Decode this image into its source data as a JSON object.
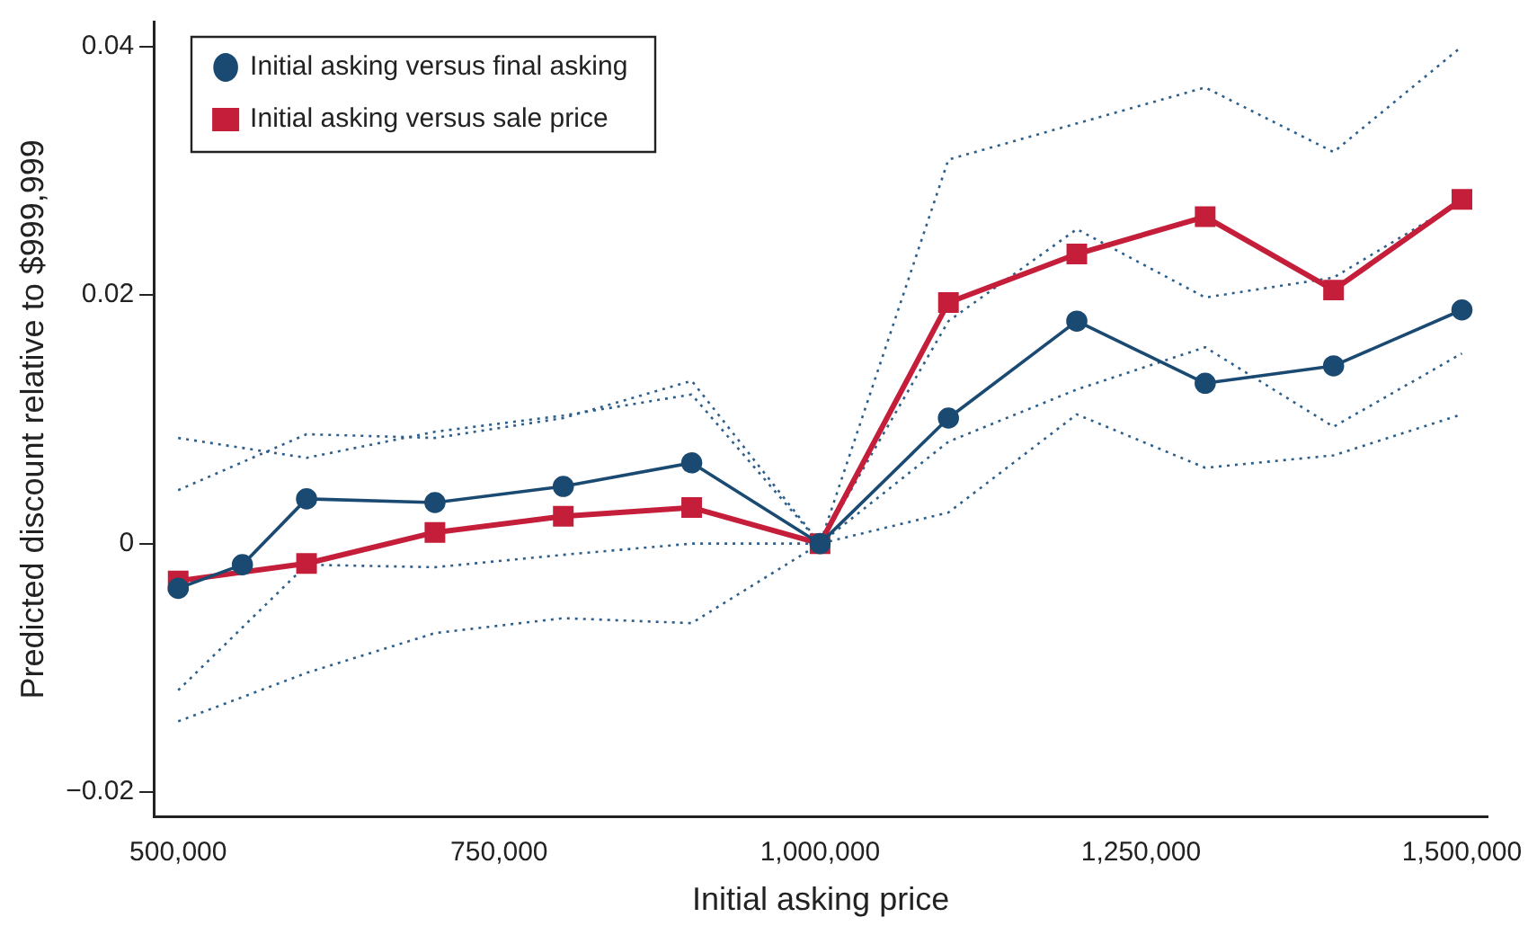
{
  "chart_data": {
    "type": "line",
    "xlabel": "Initial asking price",
    "ylabel": "Predicted discount relative to $999,999",
    "x": [
      500000,
      550000,
      600000,
      700000,
      800000,
      900000,
      1000000,
      1100000,
      1200000,
      1300000,
      1400000,
      1500000
    ],
    "series": [
      {
        "name": "Initial asking versus final asking",
        "color": "#1a4a72",
        "marker": "circle",
        "line_style": "solid",
        "values": [
          -0.0036,
          -0.0017,
          0.0036,
          0.0033,
          0.0046,
          0.0065,
          0,
          0.0101,
          0.0179,
          0.0129,
          0.0143,
          0.0188
        ]
      },
      {
        "name": "Initial asking versus sale price",
        "color": "#c41e3a",
        "marker": "square",
        "line_style": "solid",
        "x": [
          500000,
          600000,
          700000,
          800000,
          900000,
          1000000,
          1100000,
          1200000,
          1300000,
          1400000,
          1500000
        ],
        "values": [
          -0.003,
          -0.0016,
          0.0009,
          0.0022,
          0.0029,
          0,
          0.0194,
          0.0233,
          0.0263,
          0.0204,
          0.0277
        ]
      },
      {
        "color": "#2e5f8a",
        "marker": "none",
        "line_style": "dotted",
        "x": [
          500000,
          600000,
          700000,
          800000,
          900000,
          1000000,
          1100000,
          1200000,
          1300000,
          1400000,
          1500000
        ],
        "values": [
          0.0043,
          0.0088,
          0.0085,
          0.0101,
          0.0131,
          0,
          0.0179,
          0.0253,
          0.0198,
          0.0214,
          0.0276
        ]
      },
      {
        "color": "#2e5f8a",
        "marker": "none",
        "line_style": "dotted",
        "x": [
          500000,
          600000,
          700000,
          800000,
          900000,
          1000000,
          1100000,
          1200000,
          1300000,
          1400000,
          1500000
        ],
        "values": [
          -0.0118,
          -0.0017,
          -0.0019,
          -0.0009,
          0,
          0,
          0.0025,
          0.0104,
          0.0061,
          0.0071,
          0.0104
        ]
      },
      {
        "color": "#2e5f8a",
        "marker": "none",
        "line_style": "dotted",
        "x": [
          500000,
          600000,
          700000,
          800000,
          900000,
          1000000,
          1100000,
          1200000,
          1300000,
          1400000,
          1500000
        ],
        "values": [
          0.0085,
          0.0069,
          0.009,
          0.0103,
          0.012,
          0,
          0.0309,
          0.0338,
          0.0367,
          0.0315,
          0.04
        ]
      },
      {
        "color": "#2e5f8a",
        "marker": "none",
        "line_style": "dotted",
        "x": [
          500000,
          600000,
          700000,
          800000,
          900000,
          1000000,
          1100000,
          1200000,
          1300000,
          1400000,
          1500000
        ],
        "values": [
          -0.0143,
          -0.0104,
          -0.0072,
          -0.006,
          -0.0064,
          0,
          0.0082,
          0.0124,
          0.0158,
          0.0094,
          0.0153
        ]
      }
    ],
    "xlim": [
      481000,
      1520000
    ],
    "xticks": [
      {
        "value": 500000,
        "label": "500,000"
      },
      {
        "value": 750000,
        "label": "750,000"
      },
      {
        "value": 1000000,
        "label": "1,000,000"
      },
      {
        "value": 1250000,
        "label": "1,250,000"
      },
      {
        "value": 1500000,
        "label": "1,500,000"
      }
    ],
    "ylim": [
      -0.022,
      0.042
    ],
    "yticks": [
      {
        "value": -0.02,
        "label": "−0.02"
      },
      {
        "value": 0,
        "label": "0"
      },
      {
        "value": 0.02,
        "label": "0.02"
      },
      {
        "value": 0.04,
        "label": "0.04"
      }
    ],
    "legend": "top left"
  }
}
